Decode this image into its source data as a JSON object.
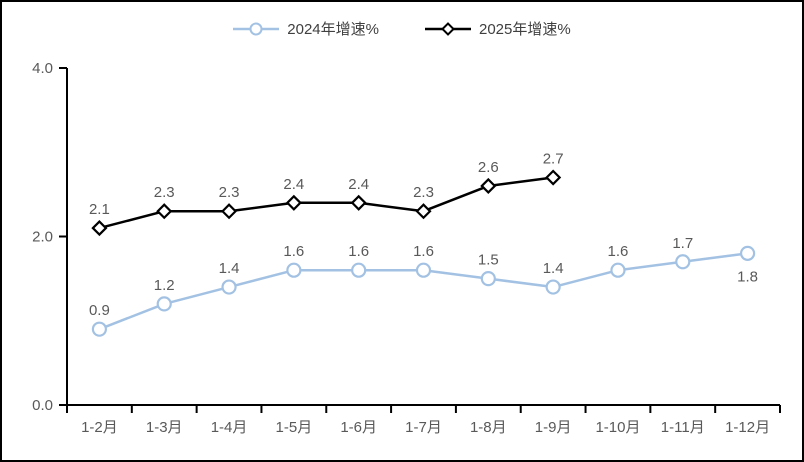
{
  "chart_data": {
    "type": "line",
    "title": "",
    "categories": [
      "1-2月",
      "1-3月",
      "1-4月",
      "1-5月",
      "1-6月",
      "1-7月",
      "1-8月",
      "1-9月",
      "1-10月",
      "1-11月",
      "1-12月"
    ],
    "series": [
      {
        "name": "2024年增速%",
        "color": "#A3C2E3",
        "marker": "circle",
        "values": [
          0.9,
          1.2,
          1.4,
          1.6,
          1.6,
          1.6,
          1.5,
          1.4,
          1.6,
          1.7,
          1.8
        ],
        "label_positions": [
          "above",
          "above",
          "above",
          "above",
          "above",
          "above",
          "above",
          "above",
          "above",
          "above",
          "below"
        ]
      },
      {
        "name": "2025年增速%",
        "color": "#000000",
        "marker": "diamond",
        "values": [
          2.1,
          2.3,
          2.3,
          2.4,
          2.4,
          2.3,
          2.6,
          2.7
        ],
        "label_positions": [
          "above",
          "above",
          "above",
          "above",
          "above",
          "above",
          "above",
          "above"
        ]
      }
    ],
    "y_axis": {
      "min": 0,
      "max": 4,
      "tick_labels": [
        "0.0",
        "2.0",
        "4.0"
      ],
      "tick_values": [
        0,
        2,
        4
      ]
    },
    "legend_position": "top",
    "grid": false,
    "axis_color": "#000000",
    "label_color": "#595959",
    "data_label_color": "#595959"
  }
}
